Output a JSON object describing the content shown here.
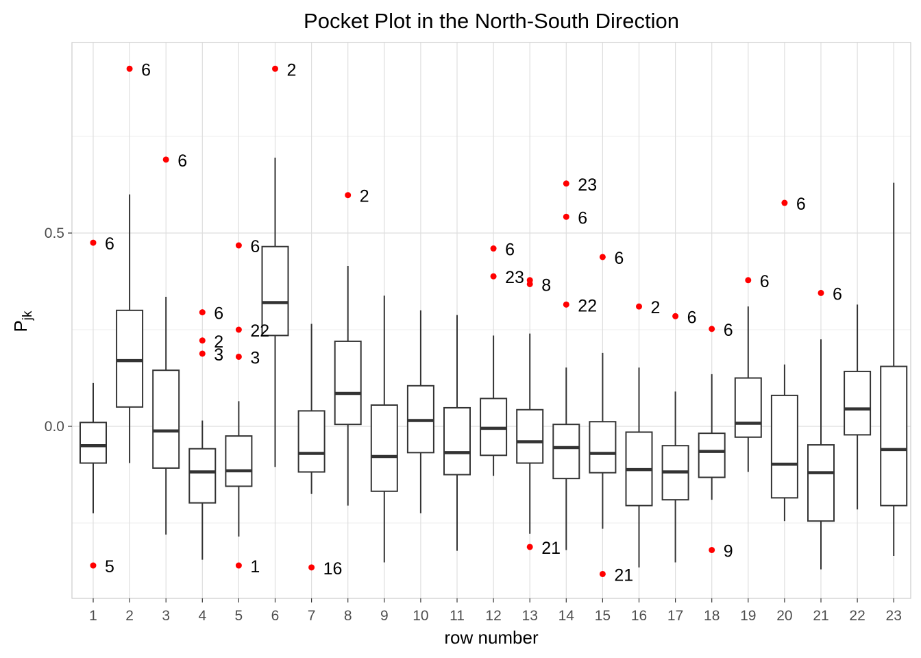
{
  "chart_data": {
    "type": "boxplot",
    "title": "Pocket Plot in the North-South Direction",
    "xlabel": "row number",
    "ylabel_main": "P",
    "ylabel_sub": "jk",
    "ylim": [
      -0.44,
      0.99
    ],
    "yticks": [
      {
        "value": 0.0,
        "label": "0.0"
      },
      {
        "value": 0.5,
        "label": "0.5"
      }
    ],
    "categories": [
      "1",
      "2",
      "3",
      "4",
      "5",
      "6",
      "7",
      "8",
      "9",
      "10",
      "11",
      "12",
      "13",
      "14",
      "15",
      "16",
      "17",
      "18",
      "19",
      "20",
      "21",
      "22",
      "23"
    ],
    "outlier_color": "#ff0000",
    "boxes": [
      {
        "row": "1",
        "q1": -0.095,
        "median": -0.05,
        "q3": 0.01,
        "lower": -0.225,
        "upper": 0.112
      },
      {
        "row": "2",
        "q1": 0.05,
        "median": 0.17,
        "q3": 0.3,
        "lower": -0.095,
        "upper": 0.6
      },
      {
        "row": "3",
        "q1": -0.108,
        "median": -0.012,
        "q3": 0.145,
        "lower": -0.28,
        "upper": 0.335
      },
      {
        "row": "4",
        "q1": -0.198,
        "median": -0.118,
        "q3": -0.058,
        "lower": -0.345,
        "upper": 0.015
      },
      {
        "row": "5",
        "q1": -0.155,
        "median": -0.115,
        "q3": -0.025,
        "lower": -0.285,
        "upper": 0.065
      },
      {
        "row": "6",
        "q1": 0.235,
        "median": 0.32,
        "q3": 0.465,
        "lower": -0.105,
        "upper": 0.695
      },
      {
        "row": "7",
        "q1": -0.118,
        "median": -0.07,
        "q3": 0.04,
        "lower": -0.175,
        "upper": 0.265
      },
      {
        "row": "8",
        "q1": 0.005,
        "median": 0.085,
        "q3": 0.22,
        "lower": -0.205,
        "upper": 0.415
      },
      {
        "row": "9",
        "q1": -0.168,
        "median": -0.078,
        "q3": 0.055,
        "lower": -0.352,
        "upper": 0.338
      },
      {
        "row": "10",
        "q1": -0.068,
        "median": 0.015,
        "q3": 0.105,
        "lower": -0.225,
        "upper": 0.3
      },
      {
        "row": "11",
        "q1": -0.125,
        "median": -0.068,
        "q3": 0.048,
        "lower": -0.322,
        "upper": 0.288
      },
      {
        "row": "12",
        "q1": -0.075,
        "median": -0.005,
        "q3": 0.072,
        "lower": -0.128,
        "upper": 0.235
      },
      {
        "row": "13",
        "q1": -0.095,
        "median": -0.04,
        "q3": 0.043,
        "lower": -0.278,
        "upper": 0.24
      },
      {
        "row": "14",
        "q1": -0.135,
        "median": -0.055,
        "q3": 0.005,
        "lower": -0.32,
        "upper": 0.152
      },
      {
        "row": "15",
        "q1": -0.12,
        "median": -0.07,
        "q3": 0.012,
        "lower": -0.265,
        "upper": 0.19
      },
      {
        "row": "16",
        "q1": -0.205,
        "median": -0.112,
        "q3": -0.015,
        "lower": -0.365,
        "upper": 0.152
      },
      {
        "row": "17",
        "q1": -0.19,
        "median": -0.118,
        "q3": -0.05,
        "lower": -0.352,
        "upper": 0.09
      },
      {
        "row": "18",
        "q1": -0.132,
        "median": -0.065,
        "q3": -0.018,
        "lower": -0.19,
        "upper": 0.135
      },
      {
        "row": "19",
        "q1": -0.028,
        "median": 0.008,
        "q3": 0.125,
        "lower": -0.118,
        "upper": 0.31
      },
      {
        "row": "20",
        "q1": -0.185,
        "median": -0.098,
        "q3": 0.08,
        "lower": -0.245,
        "upper": 0.16
      },
      {
        "row": "21",
        "q1": -0.245,
        "median": -0.12,
        "q3": -0.048,
        "lower": -0.37,
        "upper": 0.225
      },
      {
        "row": "22",
        "q1": -0.022,
        "median": 0.045,
        "q3": 0.142,
        "lower": -0.215,
        "upper": 0.315
      },
      {
        "row": "23",
        "q1": -0.205,
        "median": -0.06,
        "q3": 0.155,
        "lower": -0.335,
        "upper": 0.63
      }
    ],
    "outliers": [
      {
        "row": "1",
        "value": 0.475,
        "label": "6"
      },
      {
        "row": "1",
        "value": -0.36,
        "label": "5"
      },
      {
        "row": "2",
        "value": 0.925,
        "label": "6"
      },
      {
        "row": "3",
        "value": 0.69,
        "label": "6"
      },
      {
        "row": "4",
        "value": 0.295,
        "label": "6"
      },
      {
        "row": "4",
        "value": 0.222,
        "label": "2"
      },
      {
        "row": "4",
        "value": 0.188,
        "label": "3"
      },
      {
        "row": "5",
        "value": 0.468,
        "label": "6"
      },
      {
        "row": "5",
        "value": 0.25,
        "label": "22"
      },
      {
        "row": "5",
        "value": 0.18,
        "label": "3"
      },
      {
        "row": "5",
        "value": -0.36,
        "label": "1"
      },
      {
        "row": "6",
        "value": 0.925,
        "label": "2"
      },
      {
        "row": "7",
        "value": -0.365,
        "label": "16"
      },
      {
        "row": "8",
        "value": 0.598,
        "label": "2"
      },
      {
        "row": "12",
        "value": 0.46,
        "label": "6"
      },
      {
        "row": "12",
        "value": 0.388,
        "label": "23"
      },
      {
        "row": "13",
        "value": 0.378,
        "label": ""
      },
      {
        "row": "13",
        "value": 0.368,
        "label": "8"
      },
      {
        "row": "13",
        "value": -0.312,
        "label": "21"
      },
      {
        "row": "14",
        "value": 0.628,
        "label": "23"
      },
      {
        "row": "14",
        "value": 0.542,
        "label": "6"
      },
      {
        "row": "14",
        "value": 0.315,
        "label": "22"
      },
      {
        "row": "15",
        "value": 0.438,
        "label": "6"
      },
      {
        "row": "15",
        "value": -0.382,
        "label": "21"
      },
      {
        "row": "16",
        "value": 0.31,
        "label": "2"
      },
      {
        "row": "17",
        "value": 0.285,
        "label": "6"
      },
      {
        "row": "18",
        "value": 0.252,
        "label": "6"
      },
      {
        "row": "18",
        "value": -0.32,
        "label": "9"
      },
      {
        "row": "19",
        "value": 0.378,
        "label": "6"
      },
      {
        "row": "20",
        "value": 0.578,
        "label": "6"
      },
      {
        "row": "21",
        "value": 0.345,
        "label": "6"
      }
    ]
  }
}
